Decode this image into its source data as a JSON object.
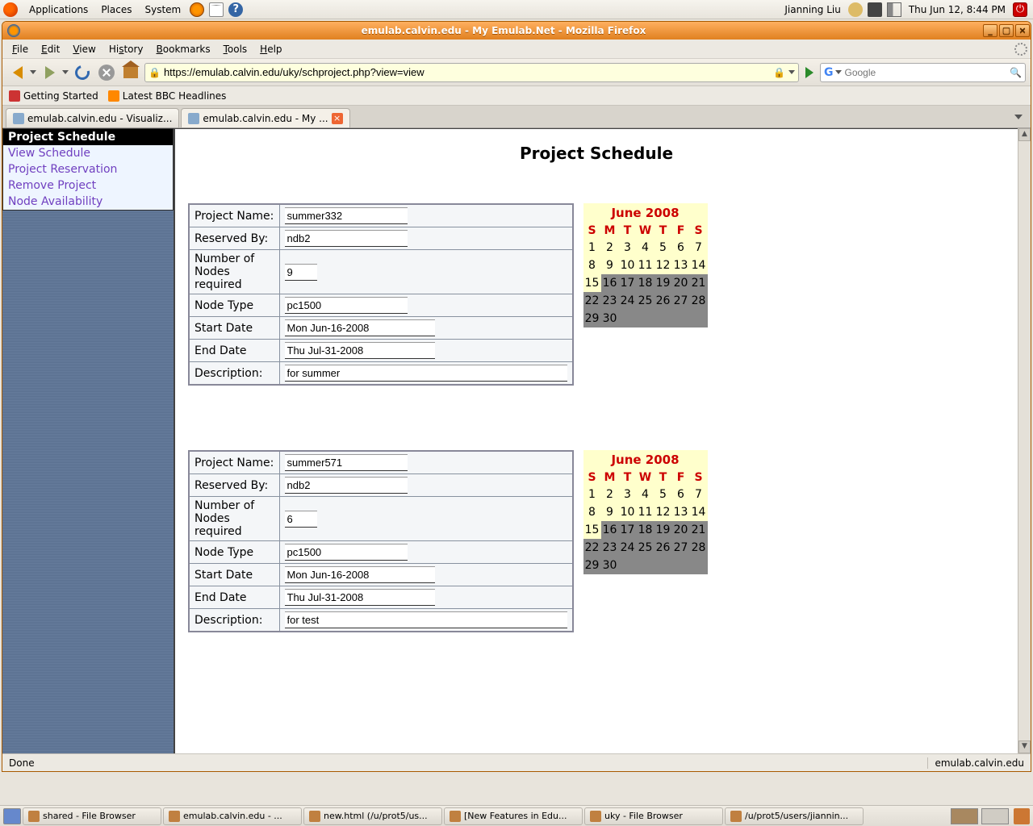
{
  "gnome": {
    "menus": [
      "Applications",
      "Places",
      "System"
    ],
    "user": "Jianning Liu",
    "clock": "Thu Jun 12,  8:44 PM"
  },
  "firefox": {
    "title": "emulab.calvin.edu - My Emulab.Net - Mozilla Firefox",
    "menus": [
      "File",
      "Edit",
      "View",
      "History",
      "Bookmarks",
      "Tools",
      "Help"
    ],
    "url": "https://emulab.calvin.edu/uky/schproject.php?view=view",
    "search_placeholder": "Google",
    "bookmarks": [
      "Getting Started",
      "Latest BBC Headlines"
    ],
    "tabs": [
      {
        "label": "emulab.calvin.edu - Visualiz...",
        "active": false
      },
      {
        "label": "emulab.calvin.edu - My ...",
        "active": true
      }
    ],
    "status_left": "Done",
    "status_right": "emulab.calvin.edu"
  },
  "page": {
    "heading": "Project Schedule",
    "nav_title": "Project Schedule",
    "nav_items": [
      "View Schedule",
      "Project Reservation",
      "Remove Project",
      "Node Availability"
    ],
    "form_labels": {
      "project_name": "Project Name:",
      "reserved_by": "Reserved By:",
      "num_nodes": "Number of Nodes required",
      "node_type": "Node Type",
      "start_date": "Start Date",
      "end_date": "End Date",
      "description": "Description:"
    },
    "projects": [
      {
        "project_name": "summer332",
        "reserved_by": "ndb2",
        "num_nodes": "9",
        "node_type": "pc1500",
        "start_date": "Mon Jun-16-2008",
        "end_date": "Thu Jul-31-2008",
        "description": "for summer"
      },
      {
        "project_name": "summer571",
        "reserved_by": "ndb2",
        "num_nodes": "6",
        "node_type": "pc1500",
        "start_date": "Mon Jun-16-2008",
        "end_date": "Thu Jul-31-2008",
        "description": "for test"
      }
    ],
    "calendar": {
      "month": "June 2008",
      "dow": [
        "S",
        "M",
        "T",
        "W",
        "T",
        "F",
        "S"
      ],
      "weeks": [
        [
          {
            "d": "1"
          },
          {
            "d": "2"
          },
          {
            "d": "3"
          },
          {
            "d": "4"
          },
          {
            "d": "5"
          },
          {
            "d": "6"
          },
          {
            "d": "7"
          }
        ],
        [
          {
            "d": "8"
          },
          {
            "d": "9"
          },
          {
            "d": "10"
          },
          {
            "d": "11"
          },
          {
            "d": "12"
          },
          {
            "d": "13"
          },
          {
            "d": "14"
          }
        ],
        [
          {
            "d": "15"
          },
          {
            "d": "16",
            "s": true
          },
          {
            "d": "17",
            "s": true
          },
          {
            "d": "18",
            "s": true
          },
          {
            "d": "19",
            "s": true
          },
          {
            "d": "20",
            "s": true
          },
          {
            "d": "21",
            "s": true
          }
        ],
        [
          {
            "d": "22",
            "s": true
          },
          {
            "d": "23",
            "s": true
          },
          {
            "d": "24",
            "s": true
          },
          {
            "d": "25",
            "s": true
          },
          {
            "d": "26",
            "s": true
          },
          {
            "d": "27",
            "s": true
          },
          {
            "d": "28",
            "s": true
          }
        ],
        [
          {
            "d": "29",
            "s": true
          },
          {
            "d": "30",
            "s": true
          },
          {
            "d": "",
            "e": true
          },
          {
            "d": "",
            "e": true
          },
          {
            "d": "",
            "e": true
          },
          {
            "d": "",
            "e": true
          },
          {
            "d": "",
            "e": true
          }
        ]
      ]
    }
  },
  "taskbar": [
    "shared - File Browser",
    "emulab.calvin.edu - ...",
    "new.html (/u/prot5/us...",
    "[New Features in Edu...",
    "uky - File Browser",
    "/u/prot5/users/jiannin..."
  ],
  "colors": {
    "panel_bg": "#e8e4dc",
    "titlebar_start": "#ffb060",
    "titlebar_end": "#e08020",
    "nav_link": "#7040c0",
    "cal_header_bg": "#ffffcc",
    "cal_header_fg": "#cc0000",
    "cal_shade": "#888888",
    "sidebar_bg": "#5a7090"
  }
}
